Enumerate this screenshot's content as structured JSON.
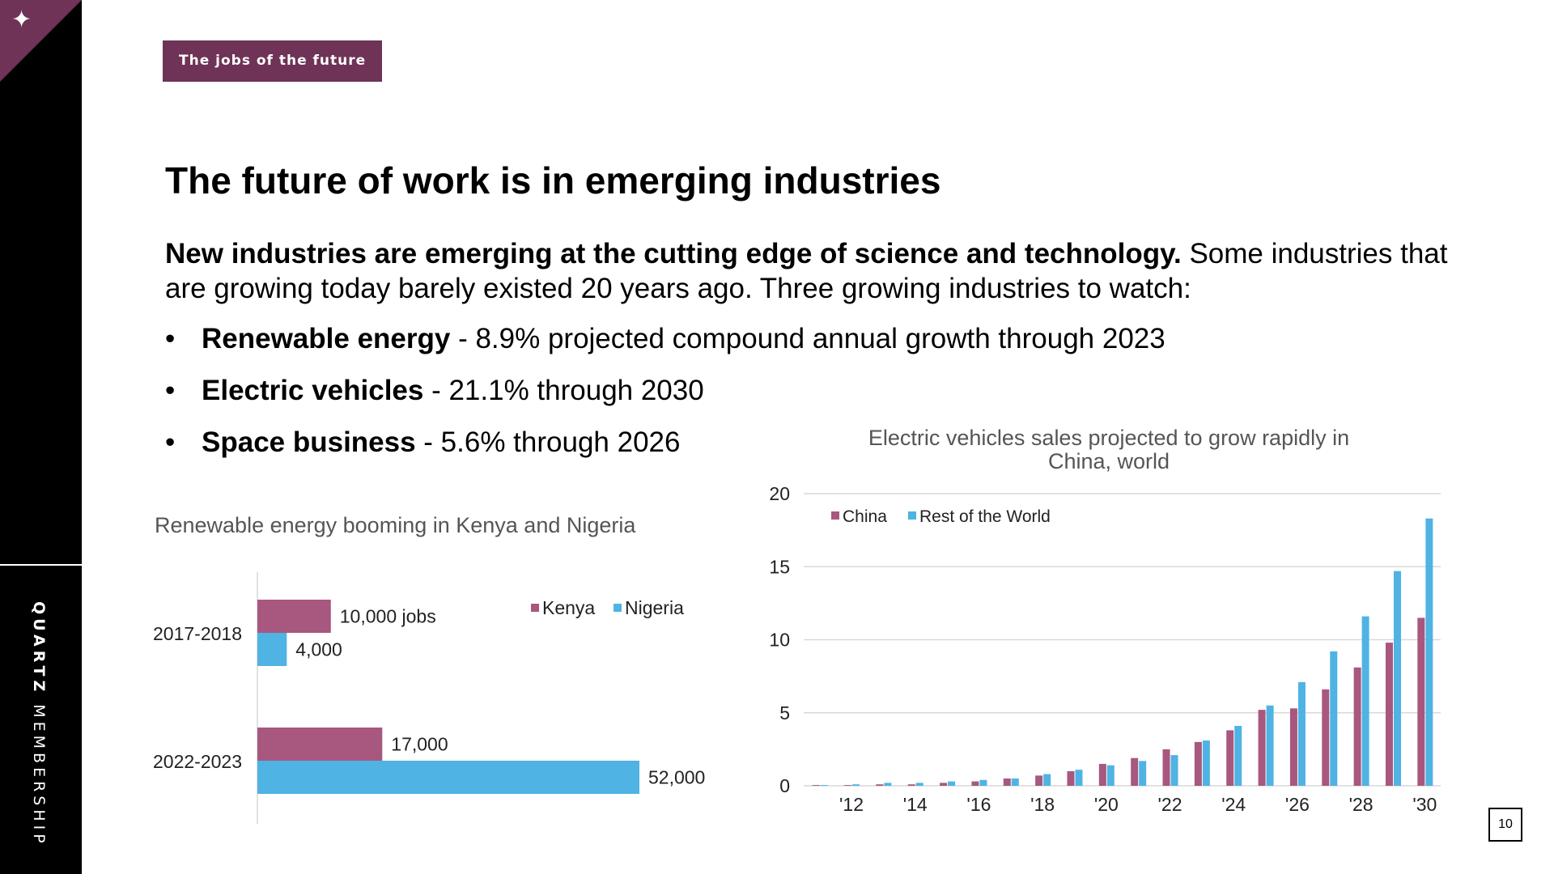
{
  "slide": {
    "tag": "The jobs of the future",
    "title": "The future of work is in emerging industries",
    "intro_bold": "New industries are emerging at the cutting edge of science and technology.",
    "intro_rest": " Some industries that are growing today barely existed 20 years ago. Three growing industries to watch:",
    "bullets": [
      {
        "bold": "Renewable energy",
        "rest": " - 8.9% projected compound annual growth through 2023"
      },
      {
        "bold": "Electric vehicles",
        "rest": " - 21.1% through 2030"
      },
      {
        "bold": "Space business",
        "rest": " - 5.6% through 2026"
      }
    ],
    "page_number": "10",
    "brand_bold": "QUARTZ",
    "brand_light": "MEMBERSHIP",
    "star_icon": "sparkle-icon"
  },
  "colors": {
    "accent": "#6e3356",
    "kenya": "#a8577e",
    "nigeria": "#4fb3e3",
    "china": "#a8577e",
    "world": "#4fb3e3"
  },
  "chart_data": [
    {
      "type": "bar",
      "orientation": "horizontal",
      "title": "Renewable energy booming in Kenya and Nigeria",
      "categories": [
        "2017-2018",
        "2022-2023"
      ],
      "series": [
        {
          "name": "Kenya",
          "values": [
            10000,
            17000
          ],
          "labels": [
            "10,000 jobs",
            "17,000"
          ]
        },
        {
          "name": "Nigeria",
          "values": [
            4000,
            52000
          ],
          "labels": [
            "4,000",
            "52,000"
          ]
        }
      ],
      "legend": "top-right",
      "grid": false
    },
    {
      "type": "bar",
      "title": "Electric vehicles sales projected to grow rapidly in China, world",
      "x": [
        2011,
        2012,
        2013,
        2014,
        2015,
        2016,
        2017,
        2018,
        2019,
        2020,
        2021,
        2022,
        2023,
        2024,
        2025,
        2026,
        2027,
        2028,
        2029,
        2030
      ],
      "x_tick_labels": [
        "'12",
        "'14",
        "'16",
        "'18",
        "'20",
        "'22",
        "'24",
        "'26",
        "'28",
        "'30"
      ],
      "series": [
        {
          "name": "China",
          "values": [
            0.05,
            0.05,
            0.1,
            0.1,
            0.2,
            0.3,
            0.5,
            0.7,
            1.0,
            1.5,
            1.9,
            2.5,
            3.0,
            3.8,
            5.2,
            5.3,
            6.6,
            8.1,
            9.8,
            11.5
          ]
        },
        {
          "name": "Rest of the World",
          "values": [
            0.05,
            0.1,
            0.2,
            0.2,
            0.3,
            0.4,
            0.5,
            0.8,
            1.1,
            1.4,
            1.7,
            2.1,
            3.1,
            4.1,
            5.5,
            7.1,
            9.2,
            11.6,
            14.7,
            18.3
          ]
        }
      ],
      "yticks": [
        0,
        5,
        10,
        15,
        20
      ],
      "ylim": [
        0,
        20
      ],
      "legend": "top-left",
      "grid": true
    }
  ]
}
